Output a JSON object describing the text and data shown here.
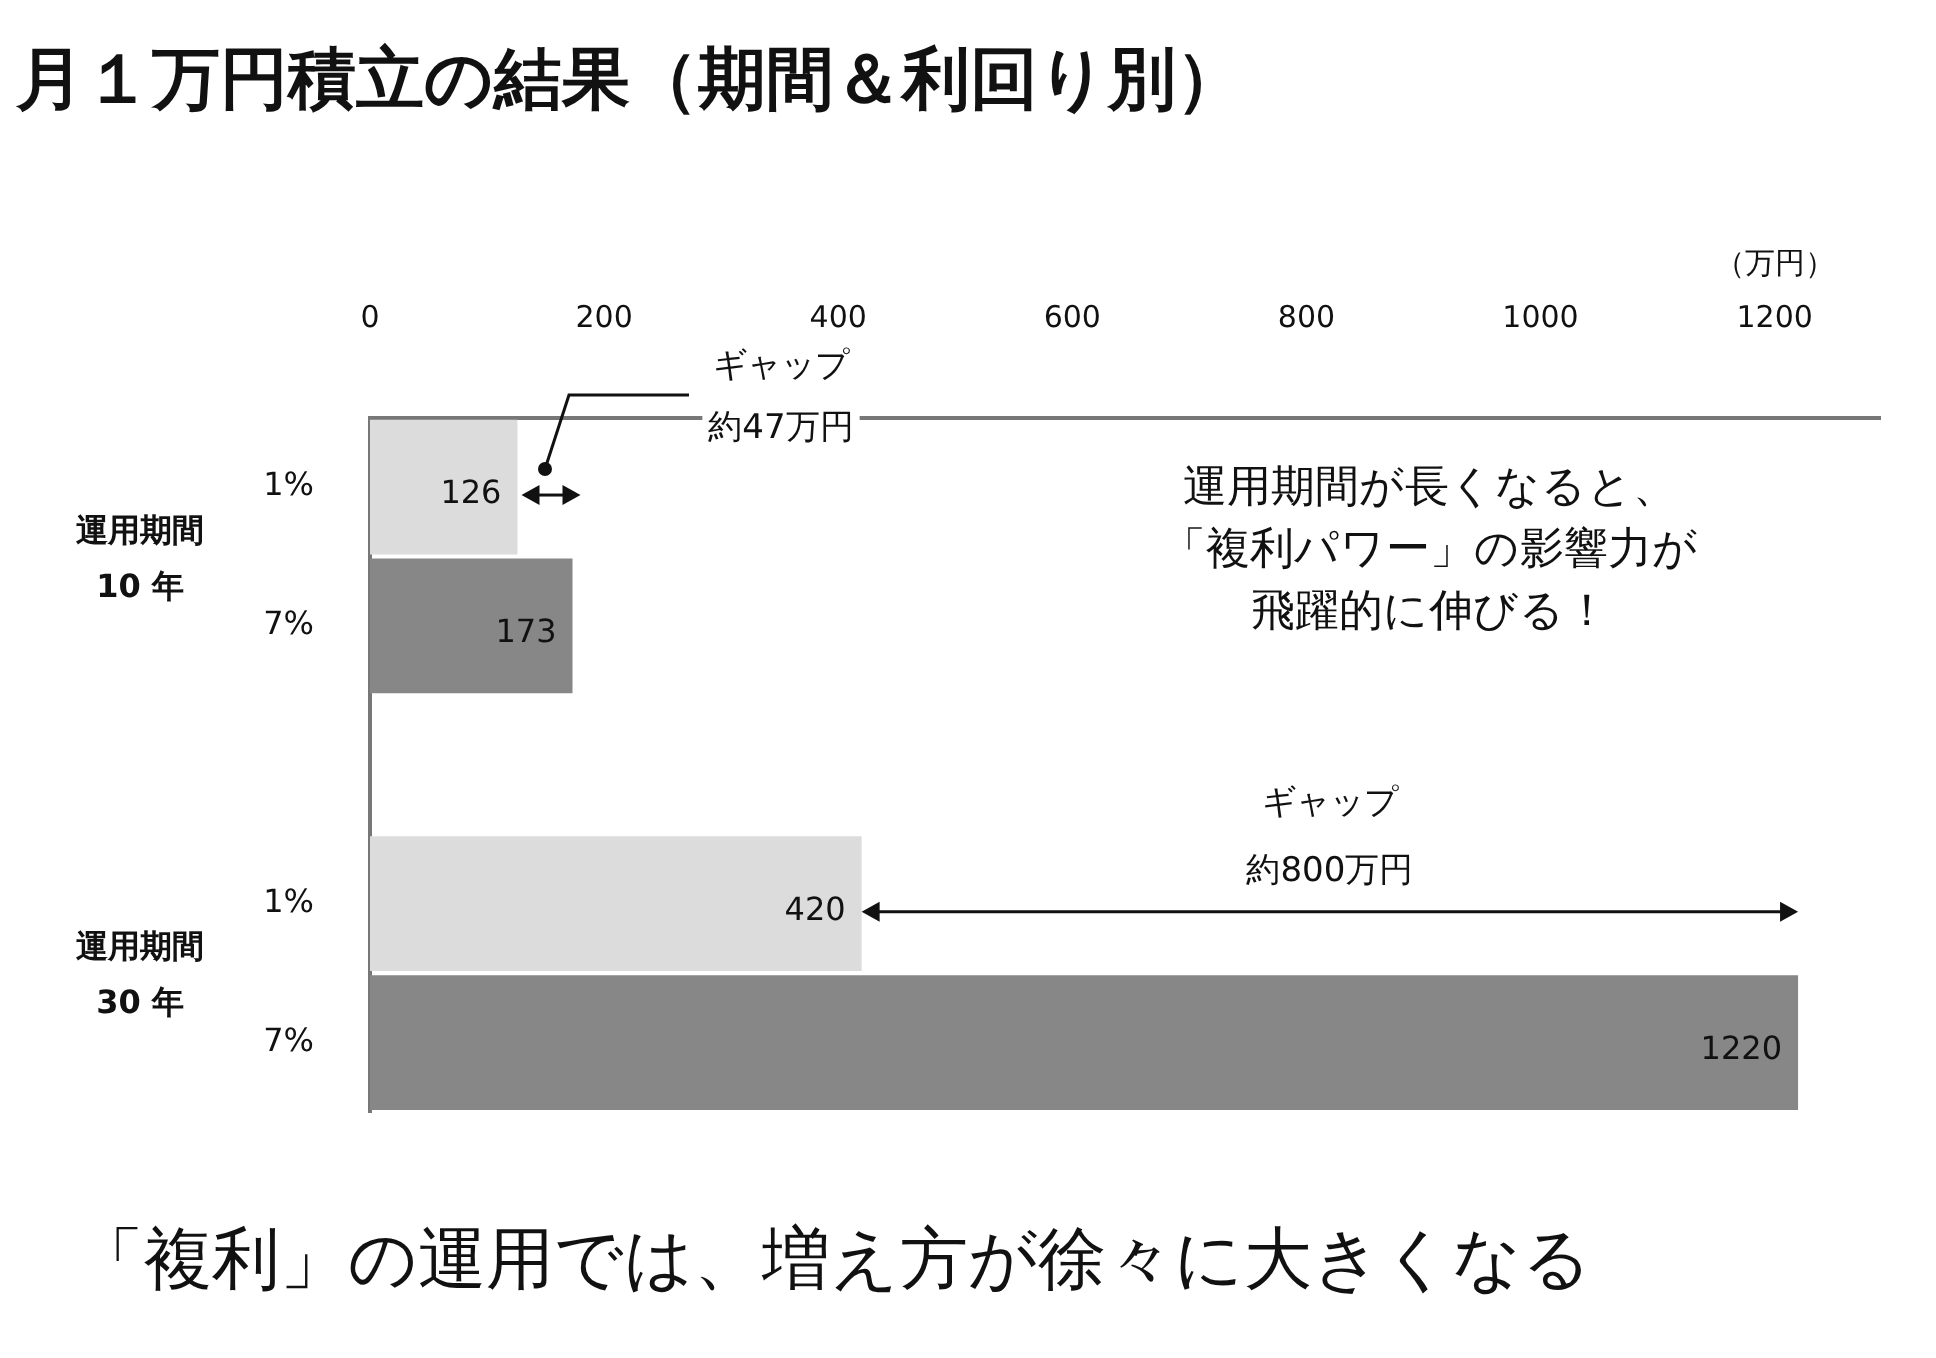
{
  "chart_data": {
    "type": "bar",
    "orientation": "horizontal",
    "title": "月１万円積立の結果（期間＆利回り別）",
    "xlabel": "（万円）",
    "categories": [
      "1%",
      "7%",
      null,
      "1%",
      "7%"
    ],
    "values": [
      126,
      173,
      null,
      420,
      1220
    ],
    "colors": [
      "#dcdcdc",
      "#878787",
      "#dcdcdc",
      "#dcdcdc",
      "#878787"
    ],
    "xlim": [
      0,
      1290
    ],
    "xticks": [
      0,
      200,
      400,
      600,
      800,
      1000,
      1200
    ],
    "data_labels": true,
    "grid": false,
    "legend": false,
    "annotations": [
      "運用期間\n10 年",
      "運用期間\n30 年",
      "ギャップ約47万円",
      "ギャップ約800万円",
      "運用期間が長くなると、「複利パワー」の影響力が飛躍的に伸びる！",
      "「複利」の運用では、増え方が徐々に大きくなる"
    ]
  }
}
